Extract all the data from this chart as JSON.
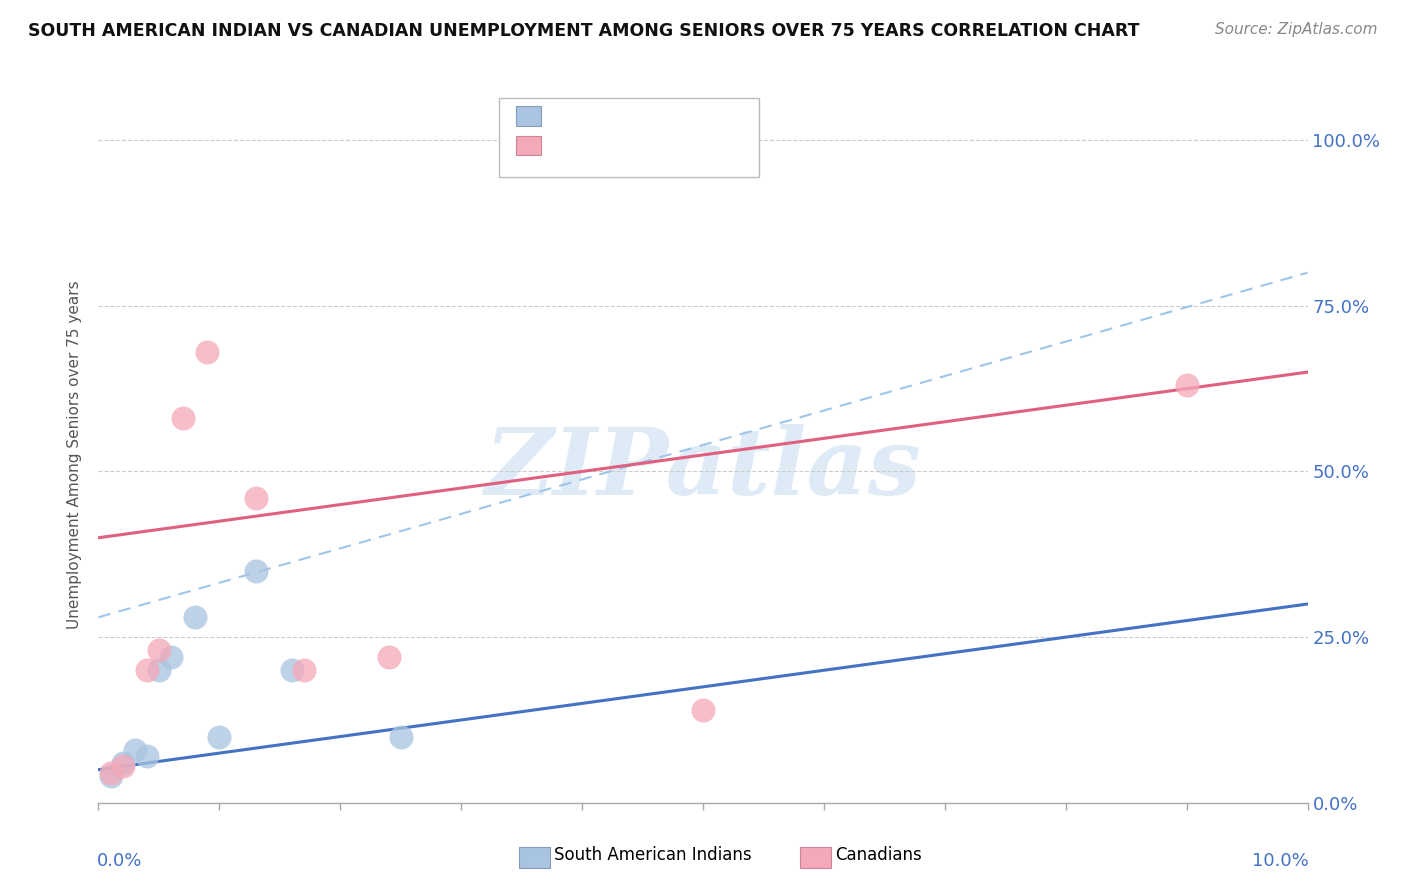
{
  "title": "SOUTH AMERICAN INDIAN VS CANADIAN UNEMPLOYMENT AMONG SENIORS OVER 75 YEARS CORRELATION CHART",
  "source": "Source: ZipAtlas.com",
  "ylabel": "Unemployment Among Seniors over 75 years",
  "blue_scatter_x": [
    0.001,
    0.002,
    0.003,
    0.004,
    0.005,
    0.006,
    0.008,
    0.01,
    0.013,
    0.016,
    0.025
  ],
  "blue_scatter_y": [
    0.04,
    0.06,
    0.08,
    0.07,
    0.2,
    0.22,
    0.28,
    0.1,
    0.35,
    0.2,
    0.1
  ],
  "pink_scatter_x": [
    0.001,
    0.002,
    0.004,
    0.005,
    0.007,
    0.009,
    0.013,
    0.017,
    0.024,
    0.05,
    0.09
  ],
  "pink_scatter_y": [
    0.045,
    0.055,
    0.2,
    0.23,
    0.58,
    0.68,
    0.46,
    0.2,
    0.22,
    0.14,
    0.63
  ],
  "blue_line_x0": 0.0,
  "blue_line_y0": 0.05,
  "blue_line_x1": 0.1,
  "blue_line_y1": 0.3,
  "pink_line_x0": 0.0,
  "pink_line_y0": 0.4,
  "pink_line_x1": 0.1,
  "pink_line_y1": 0.65,
  "dash_line_x0": 0.0,
  "dash_line_y0": 0.28,
  "dash_line_x1": 0.1,
  "dash_line_y1": 0.8,
  "blue_scatter_color": "#a8c4e0",
  "pink_scatter_color": "#f4a8b8",
  "blue_line_color": "#4472c4",
  "pink_line_color": "#e06080",
  "dash_line_color": "#9fc5e8",
  "watermark_text": "ZIPatlas",
  "watermark_color": "#c8dff0",
  "xlim": [
    0,
    0.1
  ],
  "ylim": [
    0,
    1.05
  ],
  "ytick_values": [
    0.0,
    0.25,
    0.5,
    0.75,
    1.0
  ],
  "ytick_labels": [
    "0.0%",
    "25.0%",
    "50.0%",
    "75.0%",
    "100.0%"
  ],
  "grid_color": "#cccccc",
  "background_color": "#ffffff",
  "title_color": "#111111",
  "source_color": "#888888",
  "axis_label_color": "#555555",
  "tick_label_color": "#4472c4",
  "scatter_size": 300,
  "scatter_alpha": 0.75
}
